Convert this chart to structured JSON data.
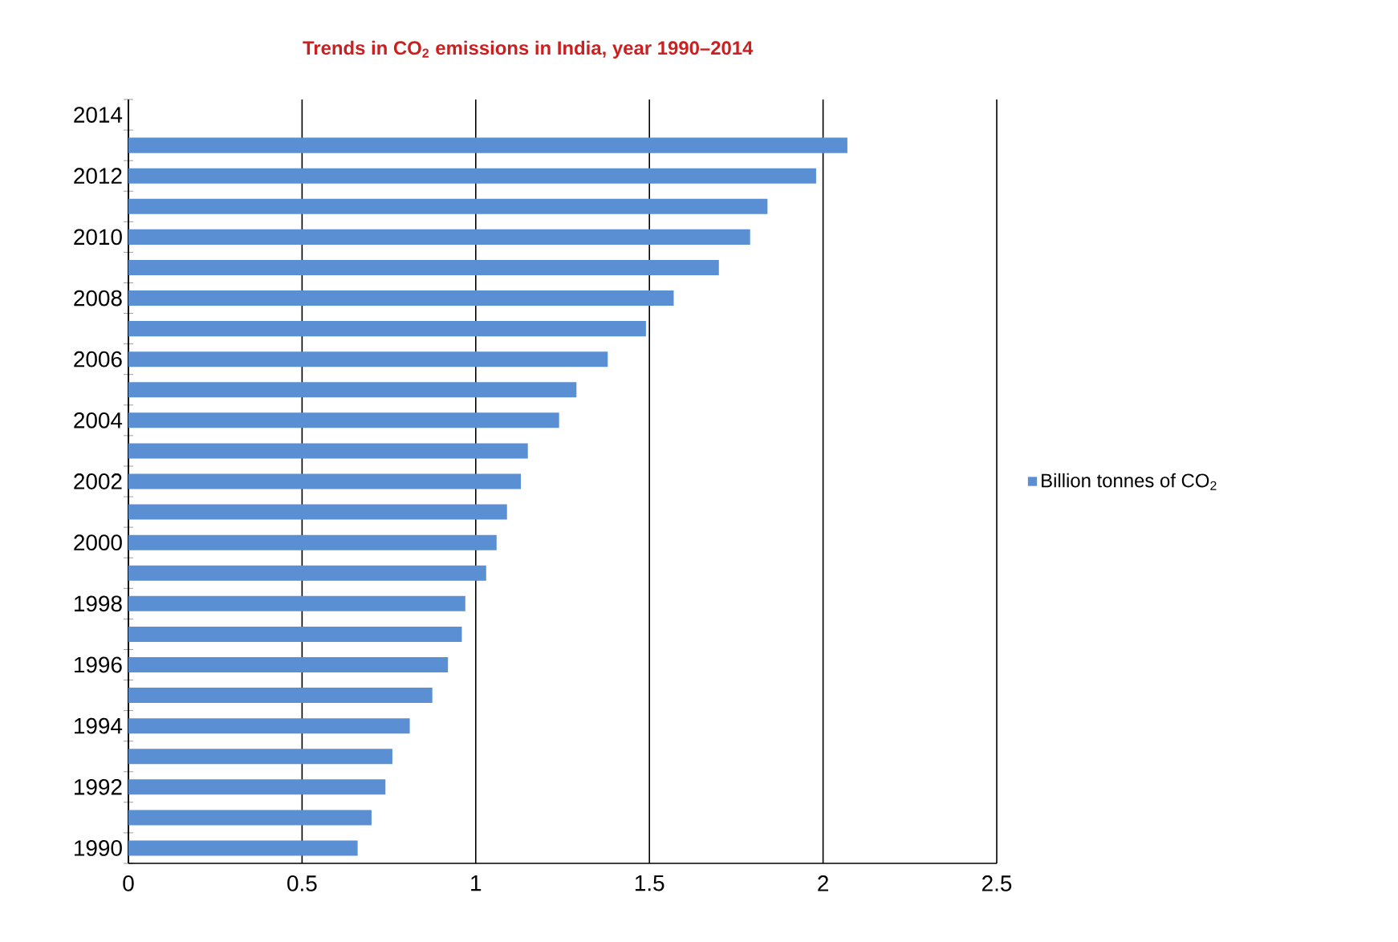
{
  "chart_data": {
    "type": "bar",
    "orientation": "horizontal",
    "title": "**Trends in  CO$_{2}$ emissions in India, year 1990–2014**",
    "categories": [
      "2014",
      null,
      "2012",
      null,
      "2010",
      null,
      "2008",
      null,
      "2006",
      null,
      "2004",
      null,
      "2002",
      null,
      "2000",
      null,
      "1998",
      null,
      "1996",
      null,
      "1994",
      null,
      "1992",
      null,
      "1990"
    ],
    "series": [
      {
        "name": "Billion tonnes of CO$_{2}$",
        "color": "#5b8fd4",
        "values": [
          null,
          2.07,
          1.98,
          1.84,
          1.79,
          1.7,
          1.57,
          1.49,
          1.38,
          1.29,
          1.24,
          1.15,
          1.13,
          1.09,
          1.06,
          1.03,
          0.97,
          0.96,
          0.92,
          0.875,
          0.81,
          0.76,
          0.74,
          0.7,
          0.66
        ]
      }
    ],
    "xlim": [
      0,
      2.5
    ],
    "xticks": [
      0,
      0.5,
      1,
      1.5,
      2,
      2.5
    ],
    "grid": "x",
    "legend": "right"
  }
}
